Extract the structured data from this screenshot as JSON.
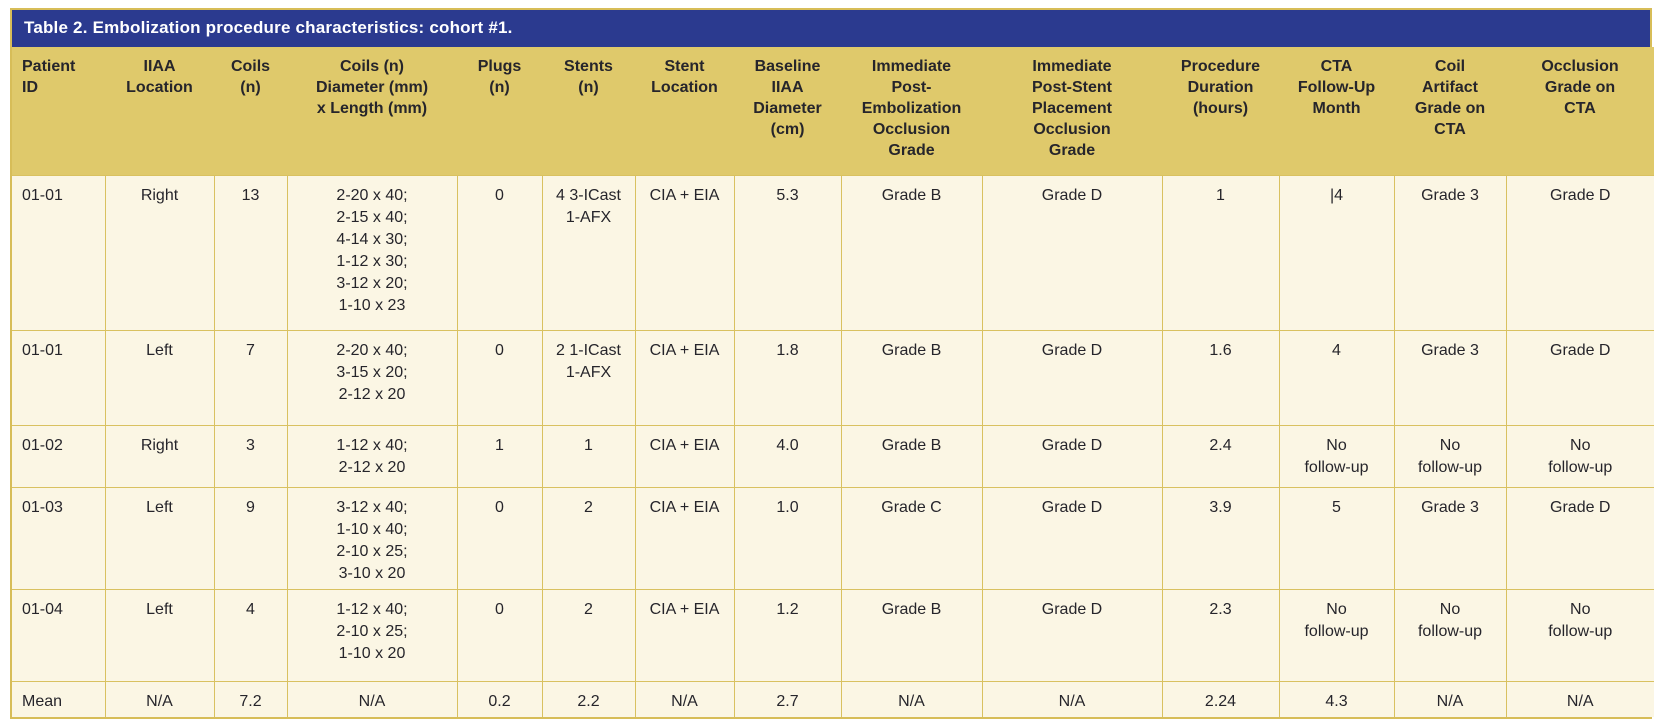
{
  "table": {
    "title": "Table 2. Embolization procedure characteristics: cohort #1.",
    "columns": [
      "Patient\nID",
      "IIAA\nLocation",
      "Coils\n(n)",
      "Coils (n)\nDiameter (mm)\nx Length (mm)",
      "Plugs\n(n)",
      "Stents\n(n)",
      "Stent\nLocation",
      "Baseline\nIIAA\nDiameter\n(cm)",
      "Immediate\nPost-\nEmbolization\nOcclusion\nGrade",
      "Immediate\nPost-Stent\nPlacement\nOcclusion\nGrade",
      "Procedure\nDuration\n(hours)",
      "CTA\nFollow-Up\nMonth",
      "Coil\nArtifact\nGrade on\nCTA",
      "Occlusion\nGrade on\nCTA"
    ],
    "rows": [
      [
        "01-01",
        "Right",
        "13",
        "2-20 x 40;\n2-15 x 40;\n4-14 x 30;\n1-12 x 30;\n3-12 x 20;\n1-10 x 23",
        "0",
        "4 3-ICast\n1-AFX",
        "CIA + EIA",
        "5.3",
        "Grade B",
        "Grade D",
        "1",
        "|4",
        "Grade 3",
        "Grade D"
      ],
      [
        "01-01",
        "Left",
        "7",
        "2-20 x 40;\n3-15 x 20;\n2-12 x 20",
        "0",
        "2 1-ICast\n1-AFX",
        "CIA + EIA",
        "1.8",
        "Grade B",
        "Grade D",
        "1.6",
        "4",
        "Grade 3",
        "Grade D"
      ],
      [
        "01-02",
        "Right",
        "3",
        "1-12 x 40;\n2-12 x 20",
        "1",
        "1",
        "CIA + EIA",
        "4.0",
        "Grade B",
        "Grade D",
        "2.4",
        "No\nfollow-up",
        "No\nfollow-up",
        "No\nfollow-up"
      ],
      [
        "01-03",
        "Left",
        "9",
        "3-12 x 40;\n1-10 x 40;\n2-10 x 25;\n3-10 x 20",
        "0",
        "2",
        "CIA + EIA",
        "1.0",
        "Grade C",
        "Grade D",
        "3.9",
        "5",
        "Grade 3",
        "Grade D"
      ],
      [
        "01-04",
        "Left",
        "4",
        "1-12 x 40;\n2-10 x 25;\n1-10 x 20",
        "0",
        "2",
        "CIA + EIA",
        "1.2",
        "Grade B",
        "Grade D",
        "2.3",
        "No\nfollow-up",
        "No\nfollow-up",
        "No\nfollow-up"
      ],
      [
        "Mean",
        "N/A",
        "7.2",
        "N/A",
        "0.2",
        "2.2",
        "N/A",
        "2.7",
        "N/A",
        "N/A",
        "2.24",
        "4.3",
        "N/A",
        "N/A"
      ]
    ],
    "colors": {
      "title_bar_bg": "#2b3a8f",
      "title_text": "#ffffff",
      "header_bg": "#dfc96b",
      "body_bg": "#fbf6e4",
      "border": "#d9c160",
      "text": "#26252b"
    }
  }
}
